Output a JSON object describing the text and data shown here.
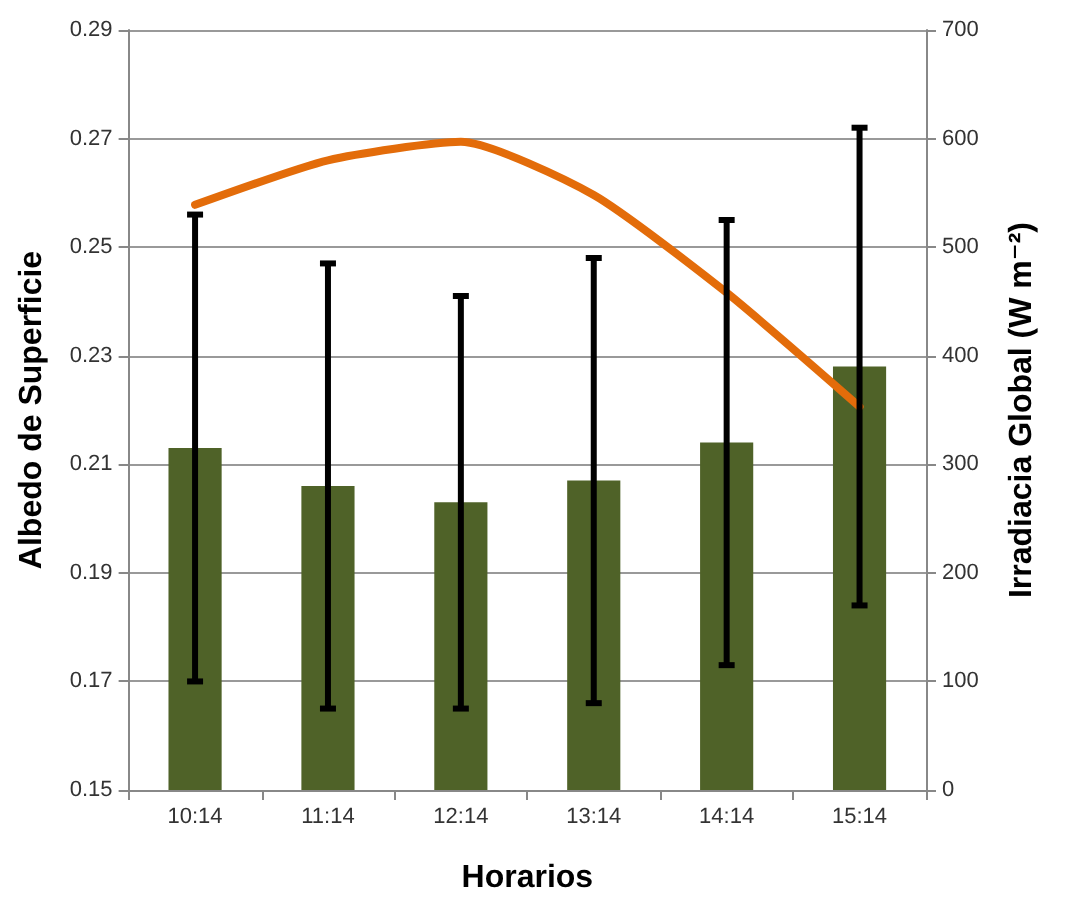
{
  "chart_data": {
    "type": "bar",
    "xlabel": "Horarios",
    "ylabel": "Albedo de Superficie",
    "y2label": "Irradiacia Global (W m⁻²)",
    "categories": [
      "10:14",
      "11:14",
      "12:14",
      "13:14",
      "14:14",
      "15:14"
    ],
    "series": [
      {
        "color": "#4f6228",
        "values": [
          0.213,
          0.206,
          0.203,
          0.207,
          0.214,
          0.228
        ],
        "errors": [
          [
            0.17,
            0.256
          ],
          [
            0.165,
            0.247
          ],
          [
            0.165,
            0.241
          ],
          [
            0.166,
            0.248
          ],
          [
            0.173,
            0.255
          ],
          [
            0.184,
            0.272
          ]
        ]
      },
      {
        "type": "line",
        "axis": "y2",
        "color": "#e36c0a",
        "values": [
          539,
          580,
          597,
          548,
          458,
          353
        ]
      }
    ],
    "ylim": [
      0.15,
      0.29
    ],
    "yticks": [
      0.15,
      0.17,
      0.19,
      0.21,
      0.23,
      0.25,
      0.27,
      0.29
    ],
    "y2lim": [
      0,
      700
    ],
    "y2ticks": [
      0,
      100,
      200,
      300,
      400,
      500,
      600,
      700
    ],
    "grid": "y",
    "marker": "none",
    "line_style": "solid"
  }
}
